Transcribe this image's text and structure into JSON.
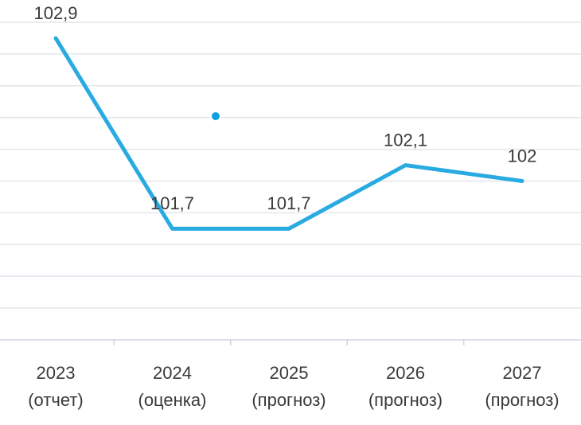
{
  "chart_data": {
    "type": "line",
    "categories": [
      [
        "2023",
        "(отчет)"
      ],
      [
        "2024",
        "(оценка)"
      ],
      [
        "2025",
        "(прогноз)"
      ],
      [
        "2026",
        "(прогноз)"
      ],
      [
        "2027",
        "(прогноз)"
      ]
    ],
    "series": [
      {
        "color": "#29abe2",
        "values": [
          102.9,
          101.7,
          101.7,
          102.1,
          102.0
        ],
        "value_labels": [
          "102,9",
          "101,7",
          "101,7",
          "102,1",
          "102"
        ]
      }
    ],
    "ylim": [
      101,
      103
    ],
    "yticks": [
      101,
      101.2,
      101.4,
      101.6,
      101.8,
      102,
      102.2,
      102.4,
      102.6,
      102.8,
      103
    ],
    "grid": true
  }
}
